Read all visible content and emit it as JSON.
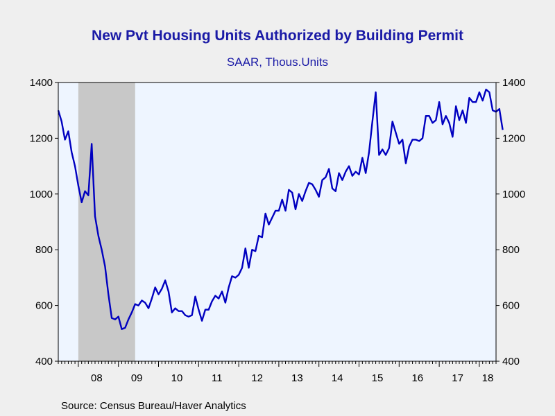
{
  "chart_data": {
    "type": "line",
    "title": "New Pvt Housing Units Authorized by Building Permit",
    "subtitle": "SAAR, Thous.Units",
    "source": "Source:  Census Bureau/Haver Analytics",
    "ylim": [
      400,
      1400
    ],
    "y_ticks": [
      "400",
      "600",
      "800",
      "1000",
      "1200",
      "1400"
    ],
    "x_range_months": [
      "2007-07",
      "2018-06"
    ],
    "x_ticks": [
      {
        "label": "08",
        "year": 2008
      },
      {
        "label": "09",
        "year": 2009
      },
      {
        "label": "10",
        "year": 2010
      },
      {
        "label": "11",
        "year": 2011
      },
      {
        "label": "12",
        "year": 2012
      },
      {
        "label": "13",
        "year": 2013
      },
      {
        "label": "14",
        "year": 2014
      },
      {
        "label": "15",
        "year": 2015
      },
      {
        "label": "16",
        "year": 2016
      },
      {
        "label": "17",
        "year": 2017
      },
      {
        "label": "18",
        "year": 2018
      }
    ],
    "recession": {
      "start": "2008-01",
      "end": "2009-06"
    },
    "colors": {
      "line": "#0000c0",
      "plot_bg": "#eef5ff",
      "recession": "#c8c8c8",
      "axis": "#000000"
    },
    "series": [
      {
        "start": "2007-07",
        "values": [
          1300,
          1260,
          1195,
          1225,
          1150,
          1100,
          1030,
          970,
          1010,
          995,
          1180,
          920,
          850,
          800,
          740,
          640,
          555,
          550,
          560,
          515,
          520,
          550,
          575,
          605,
          600,
          618,
          610,
          590,
          625,
          665,
          640,
          660,
          690,
          650,
          575,
          590,
          580,
          580,
          565,
          560,
          565,
          632,
          585,
          545,
          585,
          585,
          615,
          635,
          625,
          650,
          610,
          665,
          705,
          700,
          710,
          735,
          805,
          735,
          800,
          795,
          850,
          845,
          930,
          890,
          915,
          940,
          940,
          980,
          940,
          1015,
          1005,
          945,
          1000,
          975,
          1010,
          1040,
          1035,
          1015,
          990,
          1050,
          1060,
          1090,
          1020,
          1010,
          1075,
          1050,
          1080,
          1100,
          1065,
          1080,
          1070,
          1130,
          1075,
          1150,
          1260,
          1365,
          1140,
          1160,
          1140,
          1165,
          1260,
          1220,
          1180,
          1195,
          1110,
          1170,
          1195,
          1195,
          1190,
          1200,
          1280,
          1280,
          1255,
          1265,
          1330,
          1250,
          1280,
          1255,
          1205,
          1315,
          1265,
          1300,
          1255,
          1345,
          1330,
          1330,
          1365,
          1335,
          1375,
          1365,
          1300,
          1295,
          1305,
          1230
        ]
      }
    ]
  }
}
